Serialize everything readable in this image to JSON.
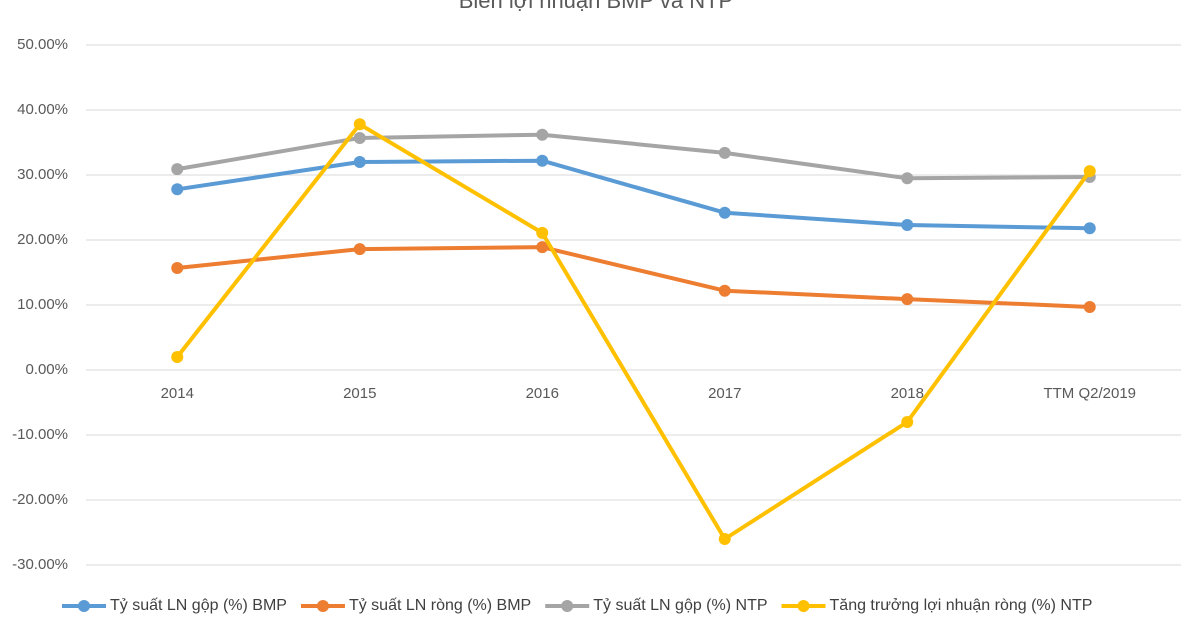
{
  "chart_data": {
    "type": "line",
    "title": "Biên lợi nhuận BMP và NTP",
    "categories": [
      "2014",
      "2015",
      "2016",
      "2017",
      "2018",
      "TTM Q2/2019"
    ],
    "series": [
      {
        "name": "Tỷ suất LN gộp (%) BMP",
        "color": "#5b9bd5",
        "values": [
          27.8,
          32.0,
          32.2,
          24.2,
          22.3,
          21.8
        ]
      },
      {
        "name": "Tỷ suất LN ròng (%) BMP",
        "color": "#ed7d31",
        "values": [
          15.7,
          18.6,
          18.9,
          12.2,
          10.9,
          9.7
        ]
      },
      {
        "name": "Tỷ suất LN gộp (%) NTP",
        "color": "#a5a5a5",
        "values": [
          30.9,
          35.7,
          36.2,
          33.4,
          29.5,
          29.7
        ]
      },
      {
        "name": "Tăng trưởng lợi nhuận ròng (%) NTP",
        "color": "#ffc000",
        "values": [
          2.0,
          37.8,
          21.1,
          -26.0,
          -8.0,
          30.6
        ]
      }
    ],
    "ylim": [
      -30,
      50
    ],
    "yticks": [
      {
        "value": -30,
        "label": "-30.00%"
      },
      {
        "value": -20,
        "label": "-20.00%"
      },
      {
        "value": -10,
        "label": "-10.00%"
      },
      {
        "value": 0,
        "label": "0.00%"
      },
      {
        "value": 10,
        "label": "10.00%"
      },
      {
        "value": 20,
        "label": "20.00%"
      },
      {
        "value": 30,
        "label": "30.00%"
      },
      {
        "value": 40,
        "label": "40.00%"
      },
      {
        "value": 50,
        "label": "50.00%"
      }
    ],
    "grid": true,
    "legend": "bottom"
  }
}
